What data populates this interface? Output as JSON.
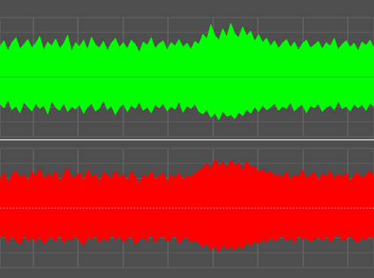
{
  "chart_data": [
    {
      "type": "waveform",
      "color": "#00ff00",
      "grid": true,
      "tick_labels": false,
      "xlim": [
        0,
        470
      ],
      "xticks": [
        42,
        98,
        155,
        211,
        268,
        324,
        381,
        437
      ],
      "ylim": [
        -1,
        1
      ],
      "yticks": [
        -1,
        -0.75,
        -0.5,
        -0.25,
        0,
        0.25,
        0.5,
        0.75,
        1
      ],
      "x": [
        0,
        5,
        10,
        15,
        20,
        25,
        30,
        35,
        40,
        45,
        50,
        55,
        60,
        65,
        70,
        75,
        80,
        85,
        90,
        95,
        100,
        105,
        110,
        115,
        120,
        125,
        130,
        135,
        140,
        145,
        150,
        155,
        160,
        165,
        170,
        175,
        180,
        185,
        190,
        195,
        200,
        205,
        210,
        215,
        220,
        225,
        230,
        235,
        240,
        245,
        250,
        255,
        260,
        265,
        270,
        275,
        280,
        285,
        290,
        295,
        300,
        305,
        310,
        315,
        320,
        325,
        330,
        335,
        340,
        345,
        350,
        355,
        360,
        365,
        370,
        375,
        380,
        385,
        390,
        395,
        400,
        405,
        410,
        415,
        420,
        425,
        430,
        435,
        440,
        445,
        450,
        455,
        460,
        465,
        470
      ],
      "values": [
        0.52,
        0.61,
        0.44,
        0.58,
        0.66,
        0.47,
        0.55,
        0.63,
        0.49,
        0.57,
        0.68,
        0.45,
        0.59,
        0.52,
        0.64,
        0.48,
        0.56,
        0.7,
        0.43,
        0.58,
        0.51,
        0.62,
        0.46,
        0.67,
        0.54,
        0.49,
        0.6,
        0.44,
        0.57,
        0.65,
        0.5,
        0.58,
        0.47,
        0.62,
        0.55,
        0.41,
        0.59,
        0.53,
        0.66,
        0.48,
        0.56,
        0.61,
        0.45,
        0.58,
        0.52,
        0.63,
        0.5,
        0.57,
        0.46,
        0.6,
        0.55,
        0.72,
        0.64,
        0.88,
        0.7,
        0.62,
        0.81,
        0.67,
        0.9,
        0.73,
        0.66,
        0.84,
        0.69,
        0.77,
        0.6,
        0.71,
        0.58,
        0.65,
        0.52,
        0.61,
        0.48,
        0.57,
        0.63,
        0.5,
        0.59,
        0.45,
        0.56,
        0.62,
        0.49,
        0.54,
        0.6,
        0.47,
        0.58,
        0.52,
        0.65,
        0.46,
        0.55,
        0.61,
        0.5,
        0.57,
        0.44,
        0.59,
        0.53,
        0.62,
        0.48
      ],
      "values_low": [
        -0.45,
        -0.52,
        -0.38,
        -0.55,
        -0.48,
        -0.6,
        -0.42,
        -0.5,
        -0.57,
        -0.44,
        -0.53,
        -0.47,
        -0.62,
        -0.4,
        -0.51,
        -0.56,
        -0.43,
        -0.58,
        -0.49,
        -0.54,
        -0.46,
        -0.61,
        -0.5,
        -0.44,
        -0.57,
        -0.52,
        -0.39,
        -0.55,
        -0.48,
        -0.63,
        -0.51,
        -0.45,
        -0.58,
        -0.47,
        -0.53,
        -0.42,
        -0.56,
        -0.5,
        -0.6,
        -0.46,
        -0.52,
        -0.44,
        -0.57,
        -0.49,
        -0.54,
        -0.41,
        -0.59,
        -0.48,
        -0.53,
        -0.45,
        -0.58,
        -0.62,
        -0.55,
        -0.68,
        -0.6,
        -0.72,
        -0.57,
        -0.66,
        -0.63,
        -0.7,
        -0.59,
        -0.65,
        -0.54,
        -0.61,
        -0.5,
        -0.58,
        -0.47,
        -0.55,
        -0.51,
        -0.44,
        -0.56,
        -0.49,
        -0.53,
        -0.42,
        -0.57,
        -0.5,
        -0.46,
        -0.6,
        -0.48,
        -0.52,
        -0.44,
        -0.58,
        -0.51,
        -0.47,
        -0.55,
        -0.4,
        -0.53,
        -0.49,
        -0.57,
        -0.45,
        -0.52,
        -0.46,
        -0.56,
        -0.43,
        -0.5
      ]
    },
    {
      "type": "waveform",
      "color": "#ff0000",
      "grid": true,
      "tick_labels": false,
      "xlim": [
        0,
        470
      ],
      "xticks": [
        42,
        98,
        155,
        211,
        268,
        324,
        381,
        437
      ],
      "ylim": [
        -1,
        1
      ],
      "yticks": [
        -1,
        -0.75,
        -0.5,
        -0.25,
        0,
        0.25,
        0.5,
        0.75,
        1
      ],
      "x": [
        0,
        5,
        10,
        15,
        20,
        25,
        30,
        35,
        40,
        45,
        50,
        55,
        60,
        65,
        70,
        75,
        80,
        85,
        90,
        95,
        100,
        105,
        110,
        115,
        120,
        125,
        130,
        135,
        140,
        145,
        150,
        155,
        160,
        165,
        170,
        175,
        180,
        185,
        190,
        195,
        200,
        205,
        210,
        215,
        220,
        225,
        230,
        235,
        240,
        245,
        250,
        255,
        260,
        265,
        270,
        275,
        280,
        285,
        290,
        295,
        300,
        305,
        310,
        315,
        320,
        325,
        330,
        335,
        340,
        345,
        350,
        355,
        360,
        365,
        370,
        375,
        380,
        385,
        390,
        395,
        400,
        405,
        410,
        415,
        420,
        425,
        430,
        435,
        440,
        445,
        450,
        455,
        460,
        465,
        470
      ],
      "values": [
        0.48,
        0.6,
        0.42,
        0.55,
        0.63,
        0.5,
        0.57,
        0.45,
        0.61,
        0.53,
        0.66,
        0.47,
        0.58,
        0.51,
        0.62,
        0.44,
        0.56,
        0.68,
        0.49,
        0.54,
        0.59,
        0.46,
        0.64,
        0.52,
        0.57,
        0.43,
        0.6,
        0.55,
        0.48,
        0.63,
        0.51,
        0.57,
        0.45,
        0.61,
        0.53,
        0.4,
        0.56,
        0.5,
        0.62,
        0.47,
        0.54,
        0.59,
        0.44,
        0.56,
        0.5,
        0.6,
        0.47,
        0.55,
        0.52,
        0.58,
        0.62,
        0.68,
        0.75,
        0.64,
        0.82,
        0.7,
        0.78,
        0.66,
        0.8,
        0.72,
        0.76,
        0.63,
        0.79,
        0.68,
        0.71,
        0.6,
        0.66,
        0.57,
        0.62,
        0.53,
        0.58,
        0.5,
        0.61,
        0.47,
        0.56,
        0.52,
        0.64,
        0.49,
        0.55,
        0.6,
        0.46,
        0.58,
        0.53,
        0.62,
        0.48,
        0.57,
        0.51,
        0.6,
        0.45,
        0.55,
        0.59,
        0.5,
        0.56,
        0.63,
        0.52
      ],
      "values_low": [
        -0.5,
        -0.44,
        -0.58,
        -0.47,
        -0.53,
        -0.61,
        -0.45,
        -0.55,
        -0.49,
        -0.57,
        -0.46,
        -0.6,
        -0.52,
        -0.48,
        -0.56,
        -0.43,
        -0.59,
        -0.51,
        -0.54,
        -0.47,
        -0.55,
        -0.62,
        -0.49,
        -0.53,
        -0.45,
        -0.58,
        -0.5,
        -0.56,
        -0.44,
        -0.52,
        -0.48,
        -0.57,
        -0.51,
        -0.46,
        -0.6,
        -0.53,
        -0.49,
        -0.55,
        -0.42,
        -0.58,
        -0.5,
        -0.47,
        -0.56,
        -0.52,
        -0.45,
        -0.59,
        -0.51,
        -0.48,
        -0.57,
        -0.53,
        -0.6,
        -0.66,
        -0.58,
        -0.7,
        -0.63,
        -0.74,
        -0.61,
        -0.68,
        -0.65,
        -0.71,
        -0.62,
        -0.69,
        -0.57,
        -0.64,
        -0.55,
        -0.6,
        -0.52,
        -0.58,
        -0.49,
        -0.56,
        -0.51,
        -0.47,
        -0.55,
        -0.5,
        -0.58,
        -0.45,
        -0.53,
        -0.49,
        -0.56,
        -0.52,
        -0.48,
        -0.54,
        -0.46,
        -0.57,
        -0.5,
        -0.43,
        -0.55,
        -0.51,
        -0.47,
        -0.53,
        -0.58,
        -0.49,
        -0.54,
        -0.46,
        -0.51
      ]
    }
  ]
}
